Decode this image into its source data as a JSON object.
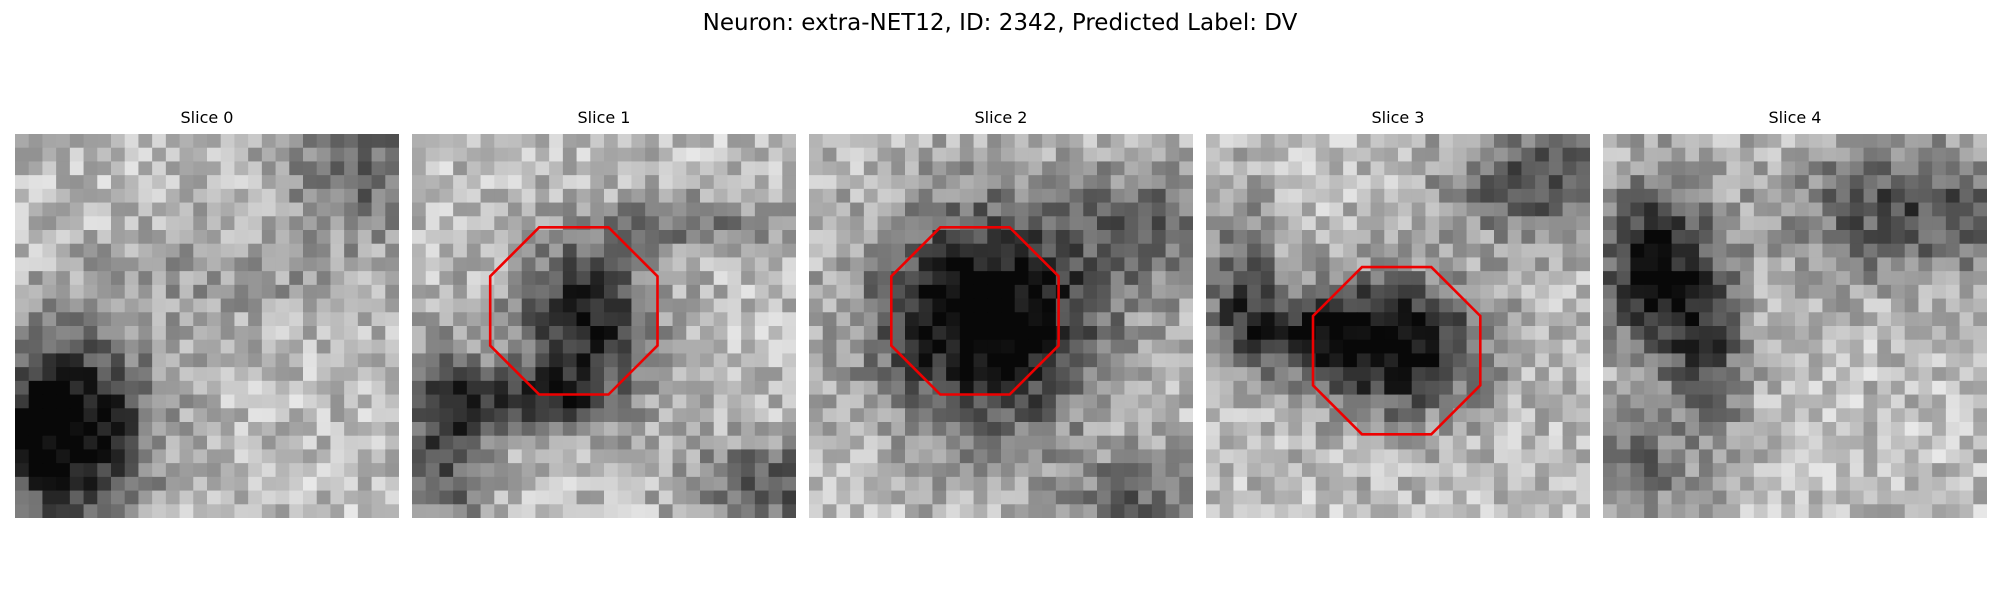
{
  "figure": {
    "title": "Neuron: extra-NET12, ID: 2342, Predicted Label: DV"
  },
  "panels": [
    {
      "label": "Slice 0",
      "has_roi": false
    },
    {
      "label": "Slice 1",
      "has_roi": true
    },
    {
      "label": "Slice 2",
      "has_roi": true
    },
    {
      "label": "Slice 3",
      "has_roi": true
    },
    {
      "label": "Slice 4",
      "has_roi": false
    }
  ],
  "colors": {
    "roi_outline": "#ee0000",
    "background": "#ffffff"
  }
}
